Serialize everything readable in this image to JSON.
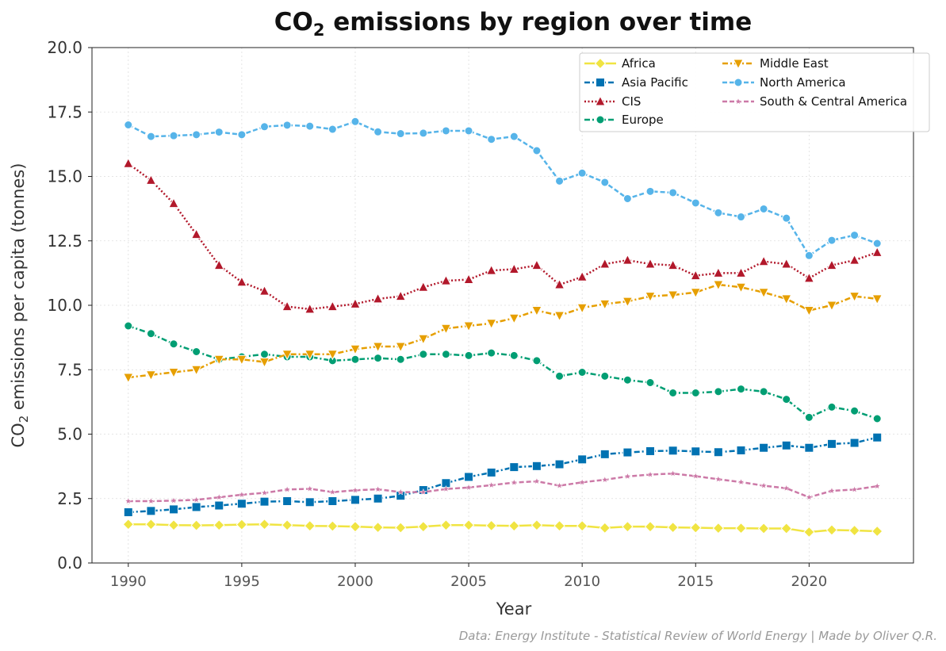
{
  "chart_data": {
    "type": "line",
    "title_prefix": "CO",
    "title_sub": "2",
    "title_suffix": " emissions by region over time",
    "xlabel": "Year",
    "ylabel_prefix": "CO",
    "ylabel_sub": "2",
    "ylabel_suffix": " emissions per capita (tonnes)",
    "xlim": [
      1988.4,
      2024.6
    ],
    "ylim": [
      0,
      20
    ],
    "xticks": [
      1990,
      1995,
      2000,
      2005,
      2010,
      2015,
      2020
    ],
    "yticks": [
      "0.0",
      "2.5",
      "5.0",
      "7.5",
      "10.0",
      "12.5",
      "15.0",
      "17.5",
      "20.0"
    ],
    "grid": true,
    "legend_position": "top-right",
    "source": "Data: Energy Institute - Statistical Review of World Energy | Made by Oliver Q.R.",
    "x": [
      1990,
      1991,
      1992,
      1993,
      1994,
      1995,
      1996,
      1997,
      1998,
      1999,
      2000,
      2001,
      2002,
      2003,
      2004,
      2005,
      2006,
      2007,
      2008,
      2009,
      2010,
      2011,
      2012,
      2013,
      2014,
      2015,
      2016,
      2017,
      2018,
      2019,
      2020,
      2021,
      2022,
      2023
    ],
    "series": [
      {
        "name": "Africa",
        "color": "#f0e442",
        "marker": "diamond",
        "dash": "solid",
        "values": [
          1.5,
          1.5,
          1.47,
          1.46,
          1.47,
          1.49,
          1.5,
          1.47,
          1.44,
          1.43,
          1.41,
          1.38,
          1.37,
          1.41,
          1.47,
          1.47,
          1.45,
          1.44,
          1.47,
          1.44,
          1.44,
          1.36,
          1.41,
          1.41,
          1.38,
          1.37,
          1.35,
          1.35,
          1.34,
          1.34,
          1.2,
          1.28,
          1.26,
          1.23
        ]
      },
      {
        "name": "Asia Pacific",
        "color": "#0072b2",
        "marker": "square",
        "dash": "dashdot",
        "values": [
          1.97,
          2.02,
          2.08,
          2.17,
          2.23,
          2.3,
          2.38,
          2.4,
          2.36,
          2.4,
          2.45,
          2.5,
          2.61,
          2.83,
          3.1,
          3.34,
          3.51,
          3.72,
          3.76,
          3.83,
          4.02,
          4.22,
          4.29,
          4.34,
          4.36,
          4.33,
          4.3,
          4.37,
          4.47,
          4.56,
          4.47,
          4.62,
          4.66,
          4.87
        ]
      },
      {
        "name": "CIS",
        "color": "#b2182b",
        "marker": "triangle-up",
        "dash": "dotted",
        "values": [
          15.5,
          14.85,
          13.95,
          12.75,
          11.55,
          10.9,
          10.55,
          9.95,
          9.85,
          9.95,
          10.05,
          10.25,
          10.35,
          10.7,
          10.95,
          11.0,
          11.35,
          11.4,
          11.55,
          10.8,
          11.1,
          11.6,
          11.75,
          11.6,
          11.55,
          11.15,
          11.25,
          11.25,
          11.7,
          11.6,
          11.05,
          11.55,
          11.75,
          12.05
        ]
      },
      {
        "name": "Europe",
        "color": "#009e73",
        "marker": "circle",
        "dash": "dashdot",
        "values": [
          9.2,
          8.9,
          8.5,
          8.2,
          7.9,
          8.0,
          8.1,
          8.0,
          8.0,
          7.85,
          7.9,
          7.95,
          7.9,
          8.1,
          8.1,
          8.05,
          8.15,
          8.05,
          7.85,
          7.25,
          7.4,
          7.25,
          7.1,
          7.0,
          6.6,
          6.6,
          6.65,
          6.75,
          6.65,
          6.35,
          5.65,
          6.05,
          5.9,
          5.6
        ]
      },
      {
        "name": "Middle East",
        "color": "#e69f00",
        "marker": "triangle-down",
        "dash": "dashdot",
        "values": [
          7.2,
          7.3,
          7.4,
          7.5,
          7.9,
          7.9,
          7.8,
          8.1,
          8.1,
          8.1,
          8.3,
          8.4,
          8.4,
          8.7,
          9.1,
          9.2,
          9.3,
          9.5,
          9.8,
          9.6,
          9.9,
          10.05,
          10.15,
          10.35,
          10.4,
          10.5,
          10.8,
          10.7,
          10.5,
          10.25,
          9.8,
          10.0,
          10.35,
          10.25
        ]
      },
      {
        "name": "North America",
        "color": "#56b4e9",
        "marker": "circle",
        "dash": "dashed",
        "values": [
          17.0,
          16.55,
          16.58,
          16.62,
          16.72,
          16.62,
          16.93,
          16.99,
          16.95,
          16.83,
          17.13,
          16.73,
          16.66,
          16.68,
          16.77,
          16.77,
          16.44,
          16.55,
          16.0,
          14.82,
          15.13,
          14.77,
          14.14,
          14.42,
          14.37,
          13.97,
          13.59,
          13.43,
          13.74,
          13.38,
          11.93,
          12.52,
          12.72,
          12.4
        ]
      },
      {
        "name": "South & Central America",
        "color": "#cc79a7",
        "marker": "star",
        "dash": "dashed",
        "values": [
          2.4,
          2.4,
          2.42,
          2.45,
          2.55,
          2.65,
          2.72,
          2.85,
          2.88,
          2.75,
          2.82,
          2.86,
          2.75,
          2.75,
          2.87,
          2.93,
          3.02,
          3.12,
          3.17,
          3.0,
          3.13,
          3.23,
          3.36,
          3.43,
          3.47,
          3.37,
          3.25,
          3.14,
          3.0,
          2.9,
          2.55,
          2.8,
          2.85,
          2.98
        ]
      }
    ]
  }
}
